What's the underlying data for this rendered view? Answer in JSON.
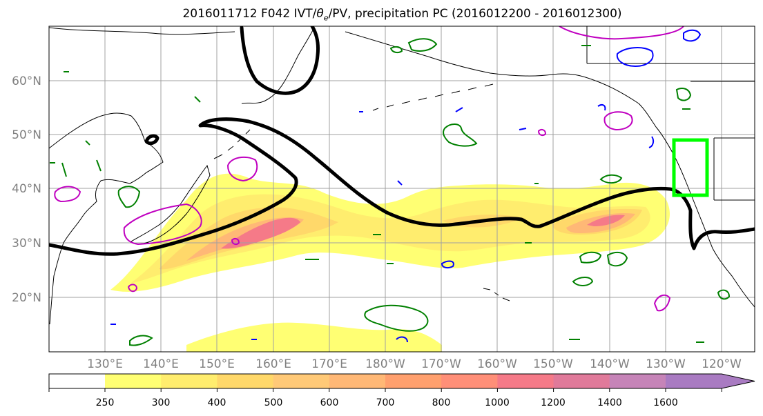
{
  "title": {
    "prefix": "2016011712 F042 IVT/",
    "theta": "θ",
    "theta_sub": "e",
    "suffix": "/PV, precipitation PC (2016012200 - 2016012300)"
  },
  "map": {
    "lon_labels": [
      "130°E",
      "140°E",
      "150°E",
      "160°E",
      "170°E",
      "180°W",
      "170°W",
      "160°W",
      "150°W",
      "140°W",
      "130°W",
      "120°W"
    ],
    "lat_labels": [
      "60°N",
      "50°N",
      "40°N",
      "30°N",
      "20°N"
    ],
    "colors": {
      "coast": "#000000",
      "jet_contour": "#000000",
      "pv_positive": "#008000",
      "pv_negative": "#0000ff",
      "ivt_contour": "#c000c0",
      "target_box": "#00ff00",
      "gridline": "#a0a0a0",
      "tick_label": "#808080"
    }
  },
  "colorbar": {
    "tick_labels": [
      "250",
      "300",
      "400",
      "500",
      "600",
      "700",
      "800",
      "1000",
      "1200",
      "1400",
      "1600"
    ],
    "colors": [
      "#ffff73",
      "#ffed6e",
      "#ffd86a",
      "#ffc977",
      "#ffb876",
      "#ffa06e",
      "#ff8f78",
      "#f57a88",
      "#e07a9a",
      "#c684b8",
      "#a97bc2"
    ],
    "extend": "max"
  }
}
